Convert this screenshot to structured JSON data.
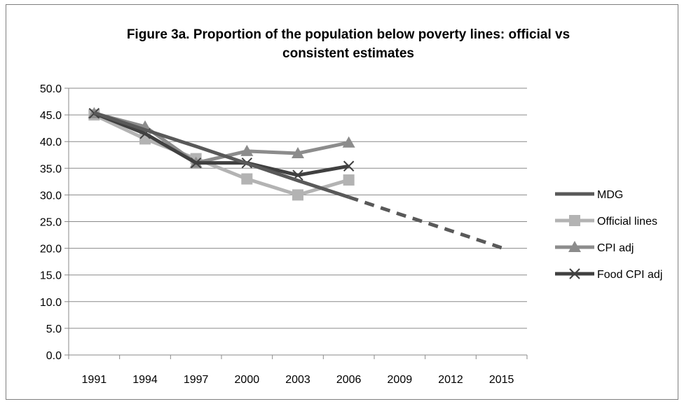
{
  "chart_data": {
    "type": "line",
    "title_line1": "Figure 3a. Proportion of the population below poverty lines: official vs",
    "title_line2": "consistent estimates",
    "categories": [
      "1991",
      "1994",
      "1997",
      "2000",
      "2003",
      "2006",
      "2009",
      "2012",
      "2015"
    ],
    "ylim": [
      0,
      50
    ],
    "yticks": [
      "0.0",
      "5.0",
      "10.0",
      "15.0",
      "20.0",
      "25.0",
      "30.0",
      "35.0",
      "40.0",
      "45.0",
      "50.0"
    ],
    "grid": true,
    "legend_position": "right",
    "series": [
      {
        "name": "MDG",
        "color": "#595959",
        "marker": "none",
        "dashed_from_index": 5,
        "values": [
          45.4,
          42.2,
          39.1,
          35.9,
          32.7,
          29.6,
          26.4,
          23.3,
          20.1
        ]
      },
      {
        "name": "Official lines",
        "color": "#b3b3b3",
        "marker": "square",
        "values": [
          45.0,
          40.5,
          36.8,
          33.0,
          30.0,
          32.8,
          null,
          null,
          null
        ]
      },
      {
        "name": "CPI adj",
        "color": "#8c8c8c",
        "marker": "triangle",
        "values": [
          45.3,
          42.8,
          36.0,
          38.2,
          37.8,
          39.8,
          null,
          null,
          null
        ]
      },
      {
        "name": "Food CPI adj",
        "color": "#404040",
        "marker": "x",
        "values": [
          45.3,
          41.5,
          36.0,
          36.0,
          33.7,
          35.4,
          null,
          null,
          null
        ]
      }
    ]
  }
}
